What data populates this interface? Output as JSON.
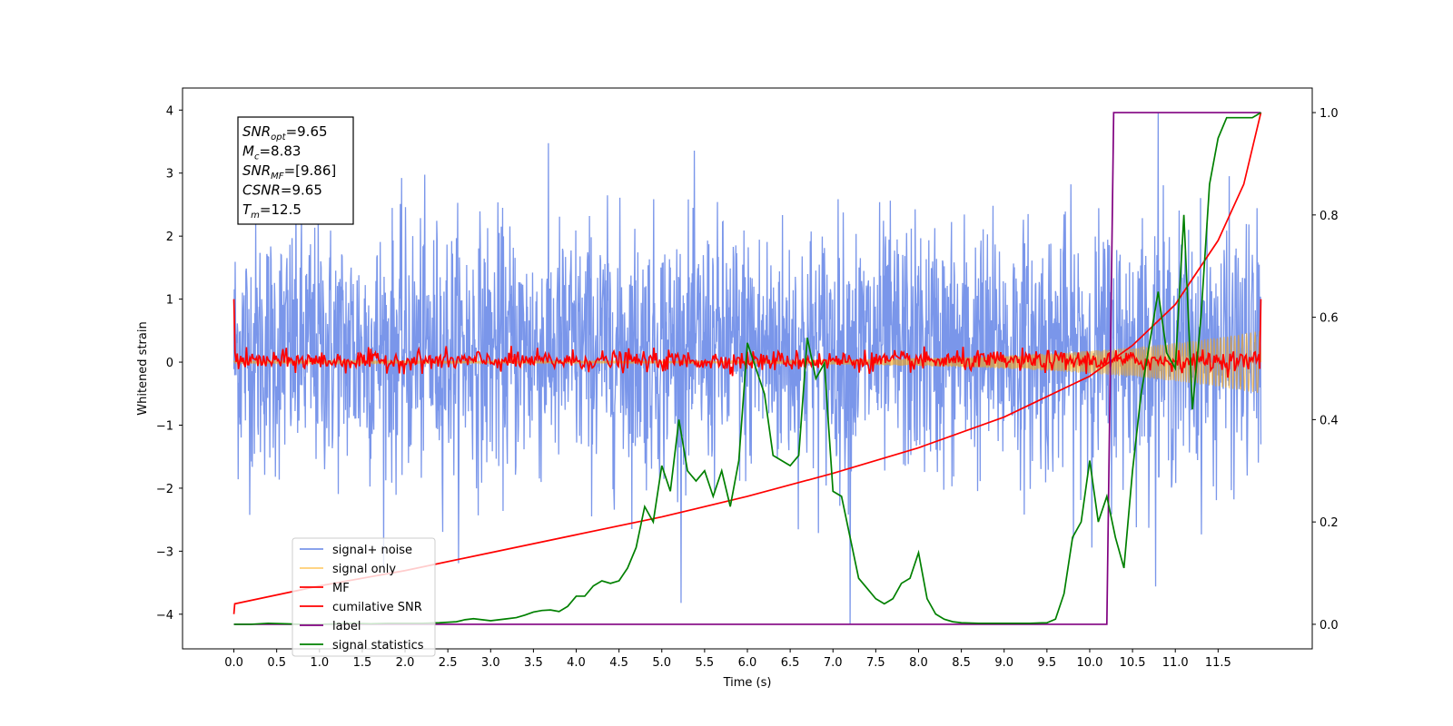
{
  "chart_data": {
    "type": "line",
    "xlabel": "Time (s)",
    "ylabel": "Whitened strain",
    "xlim": [
      -0.6,
      12.6
    ],
    "ylim": [
      -4.55,
      4.35
    ],
    "y2lim": [
      -0.048,
      1.048
    ],
    "x_ticks": [
      "0.0",
      "0.5",
      "1.0",
      "1.5",
      "2.0",
      "2.5",
      "3.0",
      "3.5",
      "4.0",
      "4.5",
      "5.0",
      "5.5",
      "6.0",
      "6.5",
      "7.0",
      "7.5",
      "8.0",
      "8.5",
      "9.0",
      "9.5",
      "10.0",
      "10.5",
      "11.0",
      "11.5"
    ],
    "y_ticks": [
      "4",
      "3",
      "2",
      "1",
      "0",
      "−1",
      "−2",
      "−3",
      "−4"
    ],
    "y_tick_values": [
      4,
      3,
      2,
      1,
      0,
      -1,
      -2,
      -3,
      -4
    ],
    "y2_ticks": [
      "1.0",
      "0.8",
      "0.6",
      "0.4",
      "0.2",
      "0.0"
    ],
    "y2_tick_values": [
      1.0,
      0.8,
      0.6,
      0.4,
      0.2,
      0.0
    ],
    "annotation": {
      "lines": [
        {
          "sym": "SNR",
          "sub": "opt",
          "value": "=9.65"
        },
        {
          "sym": "M",
          "sub": "c",
          "value": "=8.83"
        },
        {
          "sym": "SNR",
          "sub": "MF",
          "value": "=[9.86]"
        },
        {
          "sym": "CSNR",
          "sub": "",
          "value": "=9.65"
        },
        {
          "sym": "T",
          "sub": "m",
          "value": "=12.5"
        }
      ]
    },
    "legend": {
      "placement": "lower-left",
      "entries": [
        "signal+ noise",
        "signal only",
        "MF",
        "cumilative SNR",
        "label",
        "signal statistics"
      ]
    },
    "series": [
      {
        "name": "signal+ noise",
        "color": "#4169e1",
        "axis": "left",
        "style": "noise",
        "center": 0.0,
        "typical_range": [
          -2.1,
          2.4
        ],
        "max": 3.95,
        "min": -4.15,
        "x_range": [
          0.0,
          12.0
        ]
      },
      {
        "name": "signal only",
        "color": "#ffa500",
        "axis": "left",
        "style": "chirp",
        "amplitude_start": 0.02,
        "amplitude_end": 0.5,
        "x_range": [
          0.0,
          12.0
        ]
      },
      {
        "name": "MF",
        "color": "#ff0000",
        "axis": "left",
        "style": "jitter",
        "typical_range": [
          -0.15,
          0.2
        ],
        "endpoints": [
          1.0,
          1.0
        ],
        "x_range": [
          0.0,
          12.0
        ]
      },
      {
        "name": "cumilative SNR",
        "color": "#ff0000",
        "axis": "right",
        "x": [
          0.0,
          0.01,
          1.0,
          2.0,
          3.0,
          4.0,
          5.0,
          6.0,
          7.0,
          8.0,
          9.0,
          10.0,
          10.5,
          11.0,
          11.5,
          11.8,
          12.0
        ],
        "y": [
          0.02,
          0.04,
          0.075,
          0.105,
          0.14,
          0.175,
          0.21,
          0.25,
          0.295,
          0.345,
          0.405,
          0.485,
          0.545,
          0.625,
          0.75,
          0.86,
          1.0
        ]
      },
      {
        "name": "label",
        "color": "#800080",
        "axis": "right",
        "x": [
          0.0,
          10.2,
          10.28,
          12.0
        ],
        "y": [
          0.0,
          0.0,
          1.0,
          1.0
        ]
      },
      {
        "name": "signal statistics",
        "color": "#008000",
        "axis": "right",
        "x": [
          0.0,
          0.2,
          0.4,
          0.6,
          0.8,
          1.0,
          1.2,
          1.4,
          1.6,
          1.8,
          2.0,
          2.2,
          2.4,
          2.6,
          2.7,
          2.8,
          2.9,
          3.0,
          3.1,
          3.2,
          3.3,
          3.4,
          3.5,
          3.6,
          3.7,
          3.8,
          3.9,
          4.0,
          4.1,
          4.2,
          4.3,
          4.4,
          4.5,
          4.6,
          4.7,
          4.8,
          4.9,
          5.0,
          5.1,
          5.2,
          5.3,
          5.4,
          5.5,
          5.6,
          5.7,
          5.8,
          5.9,
          6.0,
          6.1,
          6.2,
          6.3,
          6.4,
          6.5,
          6.6,
          6.7,
          6.8,
          6.9,
          7.0,
          7.1,
          7.2,
          7.3,
          7.4,
          7.5,
          7.6,
          7.7,
          7.8,
          7.9,
          8.0,
          8.1,
          8.2,
          8.3,
          8.4,
          8.5,
          8.7,
          9.0,
          9.3,
          9.5,
          9.6,
          9.7,
          9.8,
          9.9,
          10.0,
          10.1,
          10.2,
          10.3,
          10.4,
          10.5,
          10.6,
          10.7,
          10.8,
          10.9,
          11.0,
          11.1,
          11.2,
          11.3,
          11.4,
          11.5,
          11.6,
          11.7,
          11.8,
          11.9,
          12.0
        ],
        "y": [
          0.0,
          0.0,
          0.002,
          0.001,
          0.0,
          0.0,
          0.001,
          0.002,
          0.001,
          0.002,
          0.002,
          0.002,
          0.003,
          0.005,
          0.009,
          0.011,
          0.009,
          0.007,
          0.009,
          0.011,
          0.013,
          0.018,
          0.024,
          0.027,
          0.028,
          0.025,
          0.035,
          0.055,
          0.055,
          0.075,
          0.085,
          0.08,
          0.085,
          0.11,
          0.15,
          0.23,
          0.2,
          0.31,
          0.26,
          0.4,
          0.3,
          0.28,
          0.3,
          0.25,
          0.3,
          0.23,
          0.32,
          0.55,
          0.5,
          0.45,
          0.33,
          0.32,
          0.31,
          0.33,
          0.56,
          0.48,
          0.51,
          0.26,
          0.25,
          0.17,
          0.09,
          0.07,
          0.05,
          0.04,
          0.05,
          0.08,
          0.09,
          0.14,
          0.05,
          0.02,
          0.01,
          0.005,
          0.003,
          0.002,
          0.002,
          0.002,
          0.003,
          0.01,
          0.06,
          0.17,
          0.2,
          0.32,
          0.2,
          0.25,
          0.17,
          0.11,
          0.3,
          0.45,
          0.55,
          0.65,
          0.53,
          0.5,
          0.8,
          0.42,
          0.6,
          0.86,
          0.95,
          0.99,
          0.99,
          0.99,
          0.99,
          1.0
        ]
      }
    ]
  }
}
